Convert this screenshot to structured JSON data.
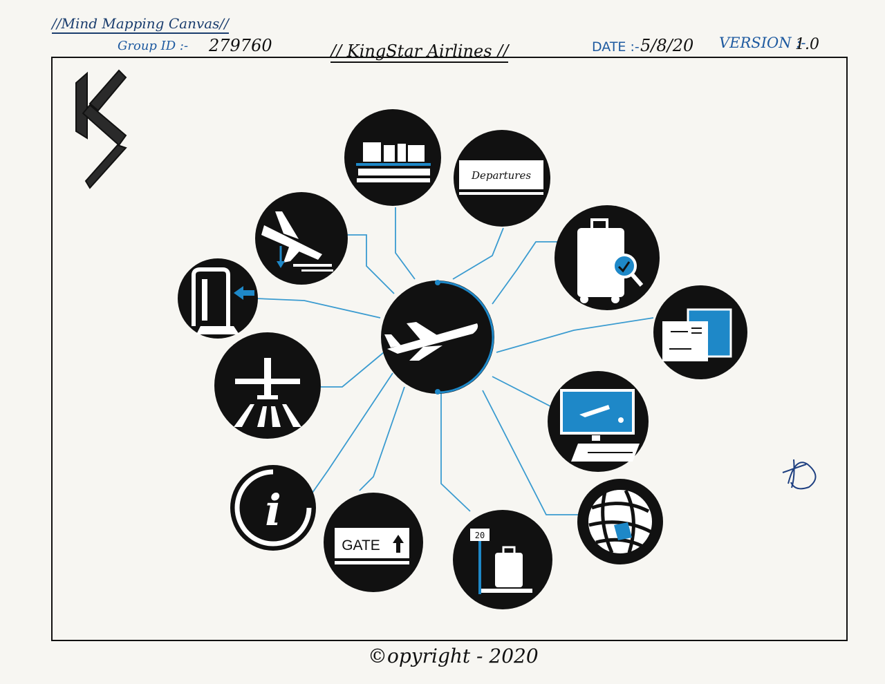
{
  "header": {
    "canvas_title": "//Mind Mapping Canvas//",
    "group_id_label": "Group ID :-",
    "group_id_value": "279760",
    "airline_name": "// KingStar Airlines //",
    "date_label": "DATE :-",
    "date_value": "5/8/20",
    "version_label": "VERSION :-",
    "version_value": "1.0"
  },
  "footer": {
    "copyright": "©opyright - 2020"
  },
  "colors": {
    "ink": "#111111",
    "accent": "#1e88c8",
    "line": "#3a9bd0",
    "paper": "#f7f6f2"
  },
  "logo": {
    "name": "ks-logo-icon"
  },
  "center_node": {
    "name": "airplane-icon"
  },
  "nodes": [
    {
      "name": "baggage-conveyor-icon"
    },
    {
      "name": "departures-board-icon",
      "label": "Departures"
    },
    {
      "name": "luggage-inspection-icon"
    },
    {
      "name": "boarding-pass-icon"
    },
    {
      "name": "flight-monitor-icon"
    },
    {
      "name": "globe-icon"
    },
    {
      "name": "baggage-scale-icon",
      "label": "20"
    },
    {
      "name": "gate-sign-icon",
      "label": "GATE"
    },
    {
      "name": "information-icon",
      "label": "i"
    },
    {
      "name": "runway-takeoff-icon"
    },
    {
      "name": "security-scanner-icon"
    },
    {
      "name": "plane-landing-icon"
    }
  ],
  "signature": {
    "name": "signature-icon"
  }
}
